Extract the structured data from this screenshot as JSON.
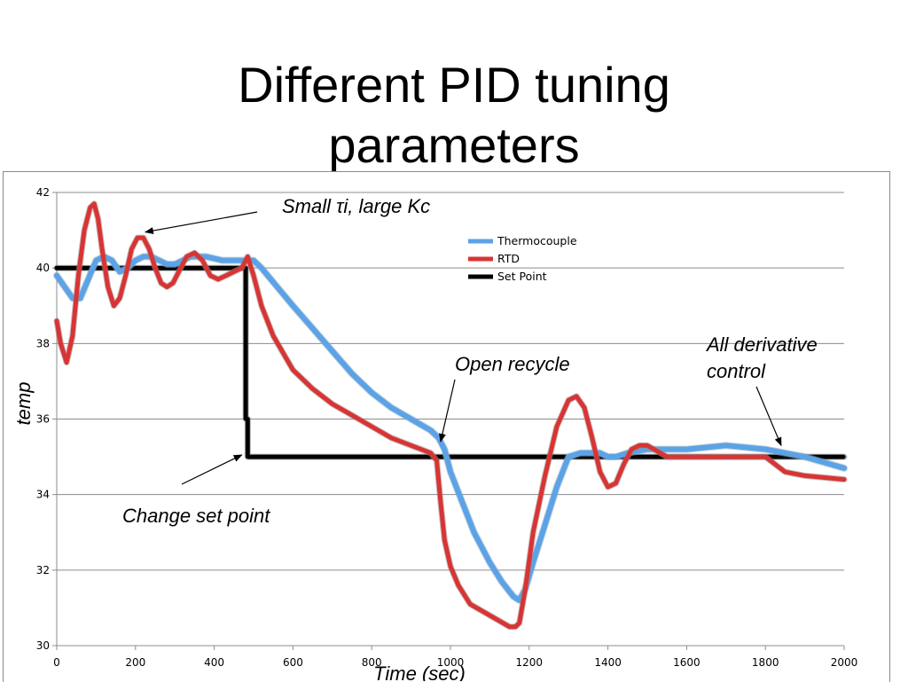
{
  "slide": {
    "title_line1": "Different PID tuning",
    "title_line2": "parameters"
  },
  "chart_data": {
    "type": "line",
    "title": "",
    "xlabel": "Time (sec)",
    "ylabel": "temp",
    "xlim": [
      0,
      2000
    ],
    "ylim": [
      30,
      42
    ],
    "x_ticks": [
      "0",
      "200",
      "400",
      "600",
      "800",
      "1000",
      "1200",
      "1400",
      "1600",
      "1800",
      "2000"
    ],
    "y_ticks": [
      "30",
      "32",
      "34",
      "36",
      "38",
      "40",
      "42"
    ],
    "grid": "horizontal",
    "legend_position": "top-center",
    "series": [
      {
        "name": "Thermocouple",
        "color": "#5ba3e6",
        "x": [
          0,
          20,
          40,
          60,
          80,
          100,
          120,
          140,
          160,
          180,
          200,
          220,
          240,
          260,
          280,
          300,
          340,
          380,
          420,
          460,
          480,
          500,
          520,
          560,
          600,
          650,
          700,
          750,
          800,
          850,
          900,
          950,
          970,
          985,
          1000,
          1030,
          1060,
          1100,
          1130,
          1160,
          1175,
          1190,
          1210,
          1240,
          1270,
          1300,
          1330,
          1360,
          1380,
          1400,
          1420,
          1450,
          1500,
          1600,
          1700,
          1800,
          1850,
          1900,
          2000
        ],
        "y": [
          39.8,
          39.5,
          39.2,
          39.2,
          39.7,
          40.2,
          40.3,
          40.2,
          39.9,
          40.0,
          40.2,
          40.3,
          40.3,
          40.2,
          40.1,
          40.1,
          40.3,
          40.3,
          40.2,
          40.2,
          40.2,
          40.2,
          40.0,
          39.5,
          39.0,
          38.4,
          37.8,
          37.2,
          36.7,
          36.3,
          36.0,
          35.7,
          35.5,
          35.2,
          34.6,
          33.8,
          33.0,
          32.2,
          31.7,
          31.3,
          31.2,
          31.5,
          32.2,
          33.2,
          34.2,
          35.0,
          35.1,
          35.1,
          35.1,
          35.0,
          35.0,
          35.1,
          35.2,
          35.2,
          35.3,
          35.2,
          35.1,
          35.0,
          34.7
        ]
      },
      {
        "name": "RTD",
        "color": "#d93434",
        "x": [
          0,
          10,
          25,
          40,
          55,
          70,
          85,
          95,
          105,
          115,
          130,
          145,
          160,
          175,
          190,
          205,
          220,
          235,
          250,
          265,
          280,
          295,
          310,
          330,
          350,
          370,
          390,
          410,
          430,
          450,
          470,
          485,
          500,
          520,
          550,
          600,
          650,
          700,
          750,
          800,
          850,
          900,
          950,
          965,
          975,
          985,
          1000,
          1020,
          1050,
          1100,
          1150,
          1165,
          1175,
          1190,
          1210,
          1240,
          1270,
          1300,
          1320,
          1340,
          1360,
          1380,
          1400,
          1420,
          1440,
          1460,
          1480,
          1500,
          1550,
          1600,
          1700,
          1800,
          1850,
          1900,
          2000
        ],
        "y": [
          38.6,
          38.0,
          37.5,
          38.2,
          39.8,
          41.0,
          41.6,
          41.7,
          41.3,
          40.5,
          39.5,
          39.0,
          39.2,
          39.8,
          40.5,
          40.8,
          40.8,
          40.5,
          40.0,
          39.6,
          39.5,
          39.6,
          39.9,
          40.3,
          40.4,
          40.2,
          39.8,
          39.7,
          39.8,
          39.9,
          40.0,
          40.3,
          39.8,
          39.0,
          38.2,
          37.3,
          36.8,
          36.4,
          36.1,
          35.8,
          35.5,
          35.3,
          35.1,
          34.9,
          33.8,
          32.8,
          32.1,
          31.6,
          31.1,
          30.8,
          30.5,
          30.5,
          30.6,
          31.5,
          33.0,
          34.5,
          35.8,
          36.5,
          36.6,
          36.3,
          35.5,
          34.6,
          34.2,
          34.3,
          34.8,
          35.2,
          35.3,
          35.3,
          35.0,
          35.0,
          35.0,
          35.0,
          34.6,
          34.5,
          34.4
        ]
      },
      {
        "name": "Set Point",
        "color": "#000000",
        "x": [
          0,
          480,
          480,
          485,
          485,
          2000
        ],
        "y": [
          40.0,
          40.0,
          36.0,
          36.0,
          35.0,
          35.0
        ]
      }
    ],
    "annotations": [
      {
        "text": "Small τi, large Kc",
        "arrow_to": [
          225,
          40.95
        ]
      },
      {
        "text": "Open recycle",
        "arrow_to": [
          975,
          35.4
        ]
      },
      {
        "text": "All derivative control",
        "arrow_to": [
          1840,
          35.3
        ]
      },
      {
        "text": "Change set point",
        "arrow_to": [
          470,
          35.05
        ]
      }
    ]
  }
}
